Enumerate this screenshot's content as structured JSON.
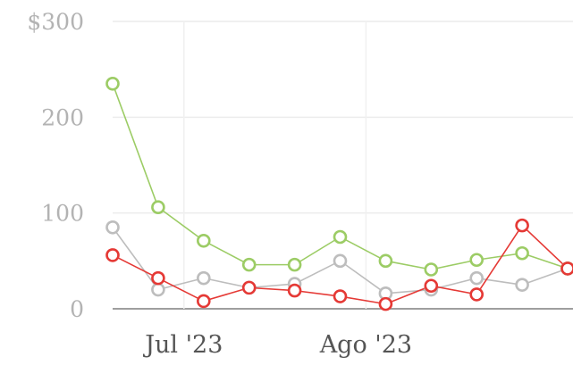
{
  "chart_data": {
    "type": "line",
    "x_ticks": [
      {
        "label": "Jul '23",
        "index": 2
      },
      {
        "label": "Ago '23",
        "index": 6
      }
    ],
    "y_ticks": [
      "$300",
      "200",
      "100",
      "0"
    ],
    "y_tick_values": [
      300,
      200,
      100,
      0
    ],
    "ylim": [
      0,
      300
    ],
    "x_count": 11,
    "grid": true,
    "series": [
      {
        "color": "#bdbdbd",
        "values": [
          85,
          20,
          32,
          22,
          26,
          50,
          16,
          20,
          32,
          25,
          42
        ]
      },
      {
        "color": "#9ccc65",
        "values": [
          235,
          106,
          71,
          46,
          46,
          75,
          50,
          41,
          51,
          58,
          42
        ]
      },
      {
        "color": "#e53935",
        "values": [
          56,
          32,
          8,
          22,
          19,
          13,
          5,
          24,
          15,
          87,
          42
        ]
      }
    ]
  }
}
